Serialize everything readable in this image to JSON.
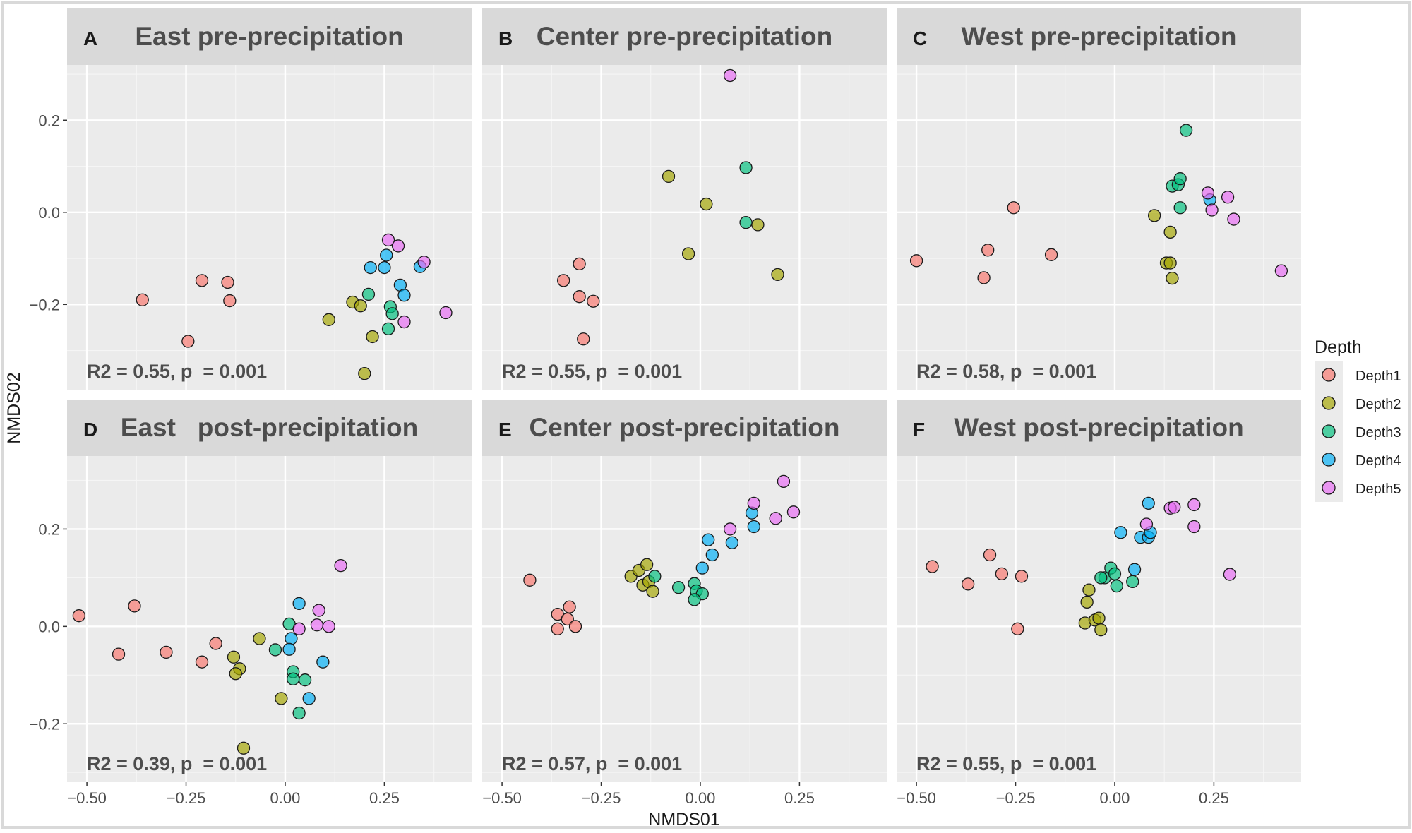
{
  "chart_data": {
    "type": "scatter",
    "axis_labels": {
      "x": "NMDS01",
      "y": "NMDS02"
    },
    "x_ticks": [
      -0.5,
      -0.25,
      0.0,
      0.25
    ],
    "x_tick_labels": [
      "−0.50",
      "−0.25",
      "0.00",
      "0.25"
    ],
    "y_ticks": [
      -0.2,
      0.0,
      0.2
    ],
    "y_tick_labels": [
      "−0.2",
      "0.0",
      "0.2"
    ],
    "xlim": [
      -0.55,
      0.47
    ],
    "ylim_top": [
      -0.385,
      0.32
    ],
    "ylim_bottom": [
      -0.32,
      0.35
    ],
    "legend": {
      "title": "Depth",
      "position": "right",
      "entries": [
        {
          "key": "Depth1",
          "label": "Depth1",
          "color": "#F8766D"
        },
        {
          "key": "Depth2",
          "label": "Depth2",
          "color": "#A3A500"
        },
        {
          "key": "Depth3",
          "label": "Depth3",
          "color": "#00BF7D"
        },
        {
          "key": "Depth4",
          "label": "Depth4",
          "color": "#00B0F6"
        },
        {
          "key": "Depth5",
          "label": "Depth5",
          "color": "#E76BF3"
        }
      ]
    },
    "panels": [
      {
        "id": "A",
        "letter": "A",
        "title": "East pre-precipitation",
        "row": 0,
        "col": 0,
        "annotation": "R2 = 0.55, p  = 0.001",
        "series": {
          "Depth1": [
            [
              -0.36,
              -0.19
            ],
            [
              -0.21,
              -0.148
            ],
            [
              -0.145,
              -0.152
            ],
            [
              -0.14,
              -0.192
            ],
            [
              -0.245,
              -0.28
            ]
          ],
          "Depth2": [
            [
              0.11,
              -0.233
            ],
            [
              0.17,
              -0.195
            ],
            [
              0.19,
              -0.203
            ],
            [
              0.22,
              -0.27
            ],
            [
              0.2,
              -0.35
            ]
          ],
          "Depth3": [
            [
              0.21,
              -0.178
            ],
            [
              0.265,
              -0.205
            ],
            [
              0.27,
              -0.22
            ],
            [
              0.26,
              -0.253
            ]
          ],
          "Depth4": [
            [
              0.215,
              -0.12
            ],
            [
              0.25,
              -0.12
            ],
            [
              0.255,
              -0.093
            ],
            [
              0.29,
              -0.158
            ],
            [
              0.3,
              -0.18
            ],
            [
              0.34,
              -0.118
            ]
          ],
          "Depth5": [
            [
              0.26,
              -0.06
            ],
            [
              0.285,
              -0.073
            ],
            [
              0.35,
              -0.108
            ],
            [
              0.3,
              -0.238
            ],
            [
              0.405,
              -0.218
            ]
          ]
        }
      },
      {
        "id": "B",
        "letter": "B",
        "title": "Center pre-precipitation",
        "row": 0,
        "col": 1,
        "annotation": "R2 = 0.55, p  = 0.001",
        "series": {
          "Depth1": [
            [
              -0.345,
              -0.148
            ],
            [
              -0.305,
              -0.112
            ],
            [
              -0.305,
              -0.183
            ],
            [
              -0.27,
              -0.193
            ],
            [
              -0.295,
              -0.275
            ]
          ],
          "Depth2": [
            [
              -0.08,
              0.078
            ],
            [
              0.015,
              0.018
            ],
            [
              -0.03,
              -0.09
            ],
            [
              0.145,
              -0.027
            ],
            [
              0.195,
              -0.135
            ]
          ],
          "Depth3": [
            [
              0.115,
              0.097
            ],
            [
              0.115,
              -0.022
            ]
          ],
          "Depth4": [],
          "Depth5": [
            [
              0.075,
              0.297
            ]
          ]
        }
      },
      {
        "id": "C",
        "letter": "C",
        "title": "West pre-precipitation",
        "row": 0,
        "col": 2,
        "annotation": "R2 = 0.58, p  = 0.001",
        "series": {
          "Depth1": [
            [
              -0.5,
              -0.105
            ],
            [
              -0.255,
              0.01
            ],
            [
              -0.32,
              -0.082
            ],
            [
              -0.33,
              -0.142
            ],
            [
              -0.16,
              -0.092
            ]
          ],
          "Depth2": [
            [
              0.1,
              -0.007
            ],
            [
              0.14,
              -0.043
            ],
            [
              0.13,
              -0.11
            ],
            [
              0.14,
              -0.11
            ],
            [
              0.145,
              -0.143
            ]
          ],
          "Depth3": [
            [
              0.18,
              0.178
            ],
            [
              0.145,
              0.057
            ],
            [
              0.16,
              0.06
            ],
            [
              0.165,
              0.073
            ],
            [
              0.165,
              0.01
            ]
          ],
          "Depth4": [
            [
              0.24,
              0.027
            ]
          ],
          "Depth5": [
            [
              0.235,
              0.042
            ],
            [
              0.285,
              0.033
            ],
            [
              0.245,
              0.005
            ],
            [
              0.3,
              -0.015
            ],
            [
              0.42,
              -0.127
            ]
          ]
        }
      },
      {
        "id": "D",
        "letter": "D",
        "title": "East   post-precipitation",
        "row": 1,
        "col": 0,
        "annotation": "R2 = 0.39, p  = 0.001",
        "series": {
          "Depth1": [
            [
              -0.52,
              0.022
            ],
            [
              -0.38,
              0.042
            ],
            [
              -0.42,
              -0.057
            ],
            [
              -0.3,
              -0.053
            ],
            [
              -0.175,
              -0.035
            ],
            [
              -0.21,
              -0.073
            ]
          ],
          "Depth2": [
            [
              -0.065,
              -0.025
            ],
            [
              -0.13,
              -0.063
            ],
            [
              -0.115,
              -0.087
            ],
            [
              -0.125,
              -0.097
            ],
            [
              -0.01,
              -0.148
            ],
            [
              -0.105,
              -0.25
            ]
          ],
          "Depth3": [
            [
              0.01,
              0.005
            ],
            [
              -0.025,
              -0.048
            ],
            [
              0.02,
              -0.093
            ],
            [
              0.02,
              -0.108
            ],
            [
              0.05,
              -0.11
            ],
            [
              0.035,
              -0.178
            ]
          ],
          "Depth4": [
            [
              0.035,
              0.047
            ],
            [
              0.015,
              -0.025
            ],
            [
              0.01,
              -0.047
            ],
            [
              0.06,
              -0.148
            ],
            [
              0.095,
              -0.073
            ]
          ],
          "Depth5": [
            [
              0.14,
              0.125
            ],
            [
              0.085,
              0.033
            ],
            [
              0.035,
              -0.005
            ],
            [
              0.08,
              0.003
            ],
            [
              0.11,
              0.0
            ]
          ]
        }
      },
      {
        "id": "E",
        "letter": "E",
        "title": "Center post-precipitation",
        "row": 1,
        "col": 1,
        "annotation": "R2 = 0.57, p  = 0.001",
        "series": {
          "Depth1": [
            [
              -0.43,
              0.095
            ],
            [
              -0.36,
              0.025
            ],
            [
              -0.33,
              0.04
            ],
            [
              -0.335,
              0.015
            ],
            [
              -0.36,
              -0.005
            ],
            [
              -0.315,
              0.0
            ]
          ],
          "Depth2": [
            [
              -0.175,
              0.103
            ],
            [
              -0.155,
              0.115
            ],
            [
              -0.135,
              0.127
            ],
            [
              -0.145,
              0.085
            ],
            [
              -0.13,
              0.092
            ],
            [
              -0.12,
              0.072
            ]
          ],
          "Depth3": [
            [
              -0.115,
              0.103
            ],
            [
              -0.055,
              0.08
            ],
            [
              -0.015,
              0.088
            ],
            [
              -0.01,
              0.073
            ],
            [
              0.005,
              0.067
            ],
            [
              -0.015,
              0.055
            ]
          ],
          "Depth4": [
            [
              0.02,
              0.178
            ],
            [
              0.03,
              0.147
            ],
            [
              0.005,
              0.12
            ],
            [
              0.08,
              0.172
            ],
            [
              0.13,
              0.233
            ],
            [
              0.135,
              0.205
            ]
          ],
          "Depth5": [
            [
              0.075,
              0.2
            ],
            [
              0.135,
              0.253
            ],
            [
              0.21,
              0.298
            ],
            [
              0.235,
              0.235
            ],
            [
              0.19,
              0.222
            ]
          ]
        }
      },
      {
        "id": "F",
        "letter": "F",
        "title": "West post-precipitation",
        "row": 1,
        "col": 2,
        "annotation": "R2 = 0.55, p  = 0.001",
        "series": {
          "Depth1": [
            [
              -0.46,
              0.123
            ],
            [
              -0.37,
              0.087
            ],
            [
              -0.315,
              0.147
            ],
            [
              -0.285,
              0.108
            ],
            [
              -0.235,
              0.103
            ],
            [
              -0.245,
              -0.005
            ]
          ],
          "Depth2": [
            [
              -0.065,
              0.075
            ],
            [
              -0.07,
              0.05
            ],
            [
              -0.075,
              0.007
            ],
            [
              -0.05,
              0.013
            ],
            [
              -0.04,
              0.017
            ],
            [
              -0.035,
              -0.007
            ]
          ],
          "Depth3": [
            [
              -0.025,
              0.1
            ],
            [
              -0.035,
              0.1
            ],
            [
              -0.01,
              0.12
            ],
            [
              0.0,
              0.108
            ],
            [
              0.005,
              0.083
            ],
            [
              0.045,
              0.092
            ]
          ],
          "Depth4": [
            [
              0.015,
              0.193
            ],
            [
              0.065,
              0.183
            ],
            [
              0.085,
              0.253
            ],
            [
              0.085,
              0.183
            ],
            [
              0.05,
              0.117
            ],
            [
              0.09,
              0.193
            ]
          ],
          "Depth5": [
            [
              0.08,
              0.21
            ],
            [
              0.14,
              0.243
            ],
            [
              0.15,
              0.245
            ],
            [
              0.2,
              0.25
            ],
            [
              0.2,
              0.205
            ],
            [
              0.29,
              0.107
            ]
          ]
        }
      }
    ]
  }
}
